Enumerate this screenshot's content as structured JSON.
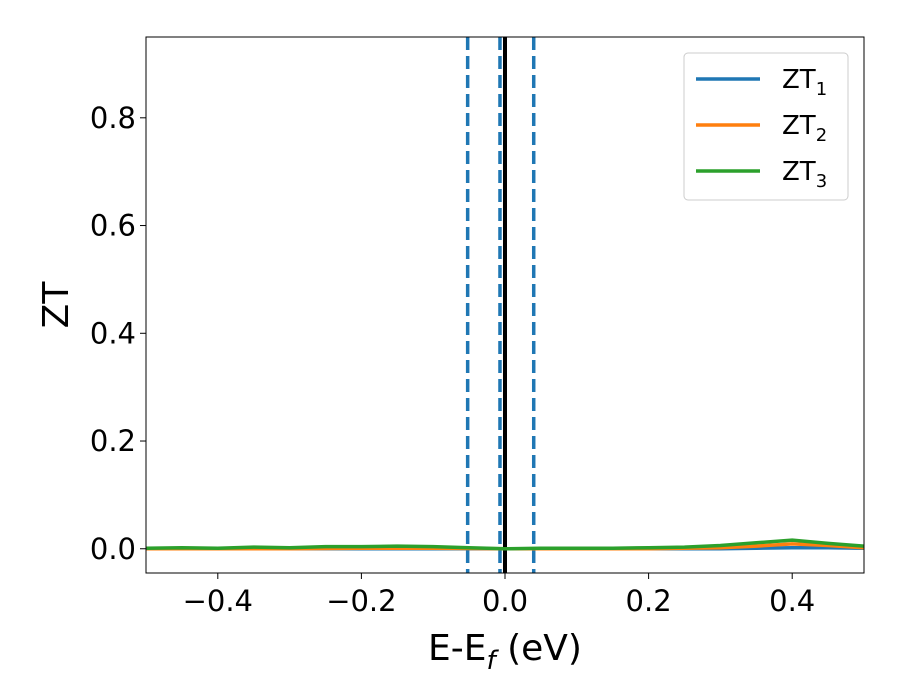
{
  "chart_data": {
    "type": "line",
    "xlabel_base": "E-E",
    "xlabel_sub": "f",
    "xlabel_unit": " (eV)",
    "ylabel": "ZT",
    "xlim": [
      -0.5,
      0.5
    ],
    "ylim": [
      -0.045,
      0.95
    ],
    "xticks": [
      -0.4,
      -0.2,
      0.0,
      0.2,
      0.4
    ],
    "xtick_labels": [
      "−0.4",
      "−0.2",
      "0.0",
      "0.2",
      "0.4"
    ],
    "yticks": [
      0.0,
      0.2,
      0.4,
      0.6,
      0.8
    ],
    "ytick_labels": [
      "0.0",
      "0.2",
      "0.4",
      "0.6",
      "0.8"
    ],
    "legend_position": "top-right",
    "vlines": [
      {
        "x": -0.052,
        "style": "dashed",
        "color": "#1f77b4"
      },
      {
        "x": -0.007,
        "style": "dashed",
        "color": "#1f77b4"
      },
      {
        "x": 0.04,
        "style": "dashed",
        "color": "#1f77b4"
      },
      {
        "x": 0.0,
        "style": "solid",
        "color": "#000000"
      }
    ],
    "series": [
      {
        "name_base": "ZT",
        "name_sub": "1",
        "color": "#1f77b4",
        "x": [
          -0.5,
          -0.4,
          -0.3,
          -0.2,
          -0.1,
          0.0,
          0.1,
          0.2,
          0.3,
          0.35,
          0.4,
          0.45,
          0.5
        ],
        "y": [
          0.0,
          0.0,
          0.0,
          0.0,
          0.0,
          0.0,
          0.0,
          0.0,
          0.0,
          0.001,
          0.002,
          0.002,
          0.001
        ]
      },
      {
        "name_base": "ZT",
        "name_sub": "2",
        "color": "#ff7f0e",
        "x": [
          -0.5,
          -0.4,
          -0.3,
          -0.2,
          -0.1,
          0.0,
          0.1,
          0.2,
          0.3,
          0.35,
          0.4,
          0.45,
          0.5
        ],
        "y": [
          0.0,
          0.0,
          0.0,
          0.001,
          0.001,
          0.0,
          0.0,
          0.0,
          0.002,
          0.005,
          0.009,
          0.006,
          0.002
        ]
      },
      {
        "name_base": "ZT",
        "name_sub": "3",
        "color": "#2ca02c",
        "x": [
          -0.5,
          -0.45,
          -0.4,
          -0.35,
          -0.3,
          -0.25,
          -0.2,
          -0.15,
          -0.1,
          -0.05,
          0.0,
          0.05,
          0.1,
          0.15,
          0.2,
          0.25,
          0.3,
          0.35,
          0.4,
          0.45,
          0.5
        ],
        "y": [
          0.001,
          0.002,
          0.001,
          0.003,
          0.002,
          0.004,
          0.004,
          0.005,
          0.004,
          0.002,
          0.0,
          0.001,
          0.001,
          0.001,
          0.002,
          0.003,
          0.006,
          0.011,
          0.016,
          0.01,
          0.005
        ]
      }
    ]
  }
}
